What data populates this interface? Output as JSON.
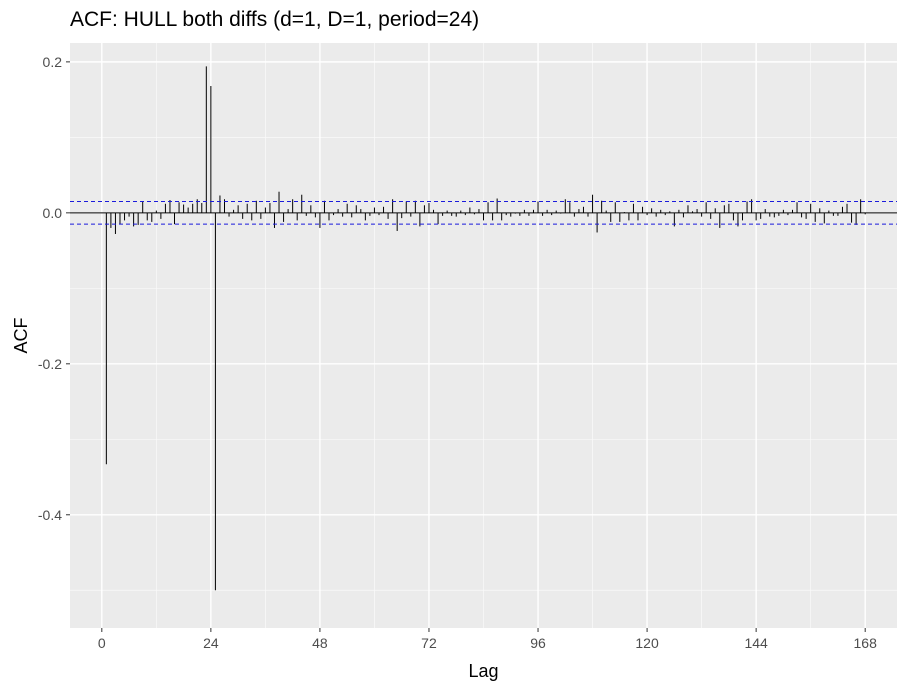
{
  "chart_data": {
    "type": "bar",
    "title": "ACF: HULL both diffs (d=1, D=1, period=24)",
    "xlabel": "Lag",
    "ylabel": "ACF",
    "xlim": [
      -7,
      175
    ],
    "ylim": [
      -0.55,
      0.225
    ],
    "xticks": [
      0,
      24,
      48,
      72,
      96,
      120,
      144,
      168
    ],
    "xtick_labels": [
      "0",
      "24",
      "48",
      "72",
      "96",
      "120",
      "144",
      "168"
    ],
    "yticks": [
      0.2,
      0.0,
      -0.2,
      -0.4
    ],
    "ytick_labels": [
      "0.2",
      "0.0",
      "-0.2",
      "-0.4"
    ],
    "confidence_bound": 0.015,
    "grid": true,
    "lags": [
      1,
      2,
      3,
      4,
      5,
      6,
      7,
      8,
      9,
      10,
      11,
      12,
      13,
      14,
      15,
      16,
      17,
      18,
      19,
      20,
      21,
      22,
      23,
      24,
      25,
      26,
      27,
      28,
      29,
      30,
      31,
      32,
      33,
      34,
      35,
      36,
      37,
      38,
      39,
      40,
      41,
      42,
      43,
      44,
      45,
      46,
      47,
      48,
      49,
      50,
      51,
      52,
      53,
      54,
      55,
      56,
      57,
      58,
      59,
      60,
      61,
      62,
      63,
      64,
      65,
      66,
      67,
      68,
      69,
      70,
      71,
      72,
      73,
      74,
      75,
      76,
      77,
      78,
      79,
      80,
      81,
      82,
      83,
      84,
      85,
      86,
      87,
      88,
      89,
      90,
      91,
      92,
      93,
      94,
      95,
      96,
      97,
      98,
      99,
      100,
      101,
      102,
      103,
      104,
      105,
      106,
      107,
      108,
      109,
      110,
      111,
      112,
      113,
      114,
      115,
      116,
      117,
      118,
      119,
      120,
      121,
      122,
      123,
      124,
      125,
      126,
      127,
      128,
      129,
      130,
      131,
      132,
      133,
      134,
      135,
      136,
      137,
      138,
      139,
      140,
      141,
      142,
      143,
      144,
      145,
      146,
      147,
      148,
      149,
      150,
      151,
      152,
      153,
      154,
      155,
      156,
      157,
      158,
      159,
      160,
      161,
      162,
      163,
      164,
      165,
      166,
      167,
      168
    ],
    "values": [
      -0.333,
      -0.02,
      -0.028,
      -0.015,
      -0.01,
      -0.005,
      -0.018,
      -0.016,
      0.015,
      -0.01,
      -0.012,
      0.003,
      -0.008,
      0.012,
      0.017,
      -0.015,
      0.014,
      0.011,
      0.007,
      0.012,
      0.018,
      0.013,
      0.194,
      0.168,
      -0.5,
      0.023,
      0.018,
      -0.005,
      0.004,
      0.01,
      -0.008,
      0.012,
      -0.01,
      0.016,
      -0.008,
      0.007,
      0.013,
      -0.02,
      0.028,
      -0.012,
      0.005,
      0.018,
      -0.01,
      0.024,
      -0.004,
      0.01,
      -0.006,
      -0.02,
      0.016,
      -0.01,
      -0.003,
      0.005,
      -0.005,
      0.012,
      -0.006,
      0.01,
      0.005,
      -0.01,
      -0.004,
      0.007,
      -0.003,
      0.008,
      -0.008,
      0.018,
      -0.024,
      -0.007,
      0.015,
      -0.005,
      0.016,
      -0.018,
      0.01,
      0.013,
      0.004,
      -0.015,
      -0.004,
      0.003,
      -0.004,
      -0.005,
      0.003,
      -0.003,
      0.007,
      -0.002,
      0.005,
      -0.01,
      0.014,
      -0.01,
      0.019,
      -0.01,
      -0.003,
      -0.005,
      -0.001,
      -0.004,
      0.004,
      -0.004,
      0.004,
      0.015,
      -0.004,
      0.004,
      -0.003,
      0.003,
      -0.001,
      0.018,
      0.014,
      -0.005,
      0.005,
      0.008,
      -0.005,
      0.024,
      -0.026,
      0.016,
      0.003,
      -0.012,
      0.014,
      -0.012,
      0.001,
      -0.01,
      0.012,
      -0.01,
      0.008,
      -0.003,
      0.006,
      -0.005,
      0.004,
      -0.003,
      0.002,
      -0.018,
      0.004,
      -0.006,
      0.01,
      0.002,
      0.005,
      -0.005,
      0.014,
      -0.008,
      0.006,
      -0.02,
      0.01,
      0.012,
      -0.01,
      -0.018,
      -0.01,
      0.015,
      0.018,
      -0.01,
      -0.008,
      0.005,
      -0.005,
      -0.006,
      -0.004,
      0.004,
      -0.003,
      0.004,
      0.014,
      -0.006,
      -0.008,
      0.012,
      -0.012,
      0.006,
      -0.014,
      0.003,
      -0.004,
      -0.004,
      0.008,
      0.012,
      -0.013,
      -0.016,
      0.018,
      -0.002,
      -0.001,
      -0.001,
      0.001
    ]
  }
}
